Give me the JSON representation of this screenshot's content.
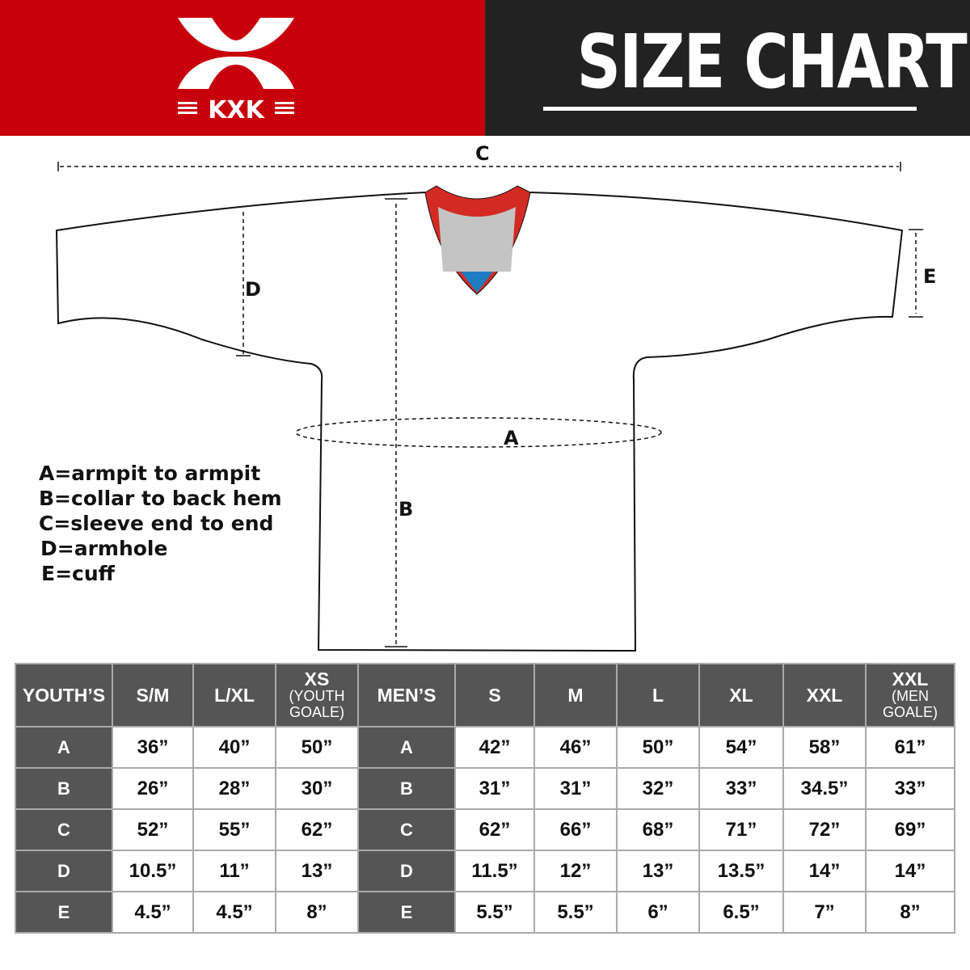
{
  "brand": {
    "logo_text": "KXK"
  },
  "header": {
    "title": "SIZE CHART"
  },
  "diagram": {
    "labels": [
      "A",
      "B",
      "C",
      "D",
      "E"
    ]
  },
  "legend": [
    "A=armpit to armpit",
    "B=collar to back hem",
    "C=sleeve end to end",
    "D=armhole",
    "E=cuff"
  ],
  "table": {
    "youth_header": "YOUTH’S",
    "men_header": "MEN’S",
    "youth_sizes": [
      {
        "main": "S/M"
      },
      {
        "main": "L/XL"
      },
      {
        "main": "XS",
        "sub": "(YOUTH GOALE)"
      }
    ],
    "men_sizes": [
      {
        "main": "S"
      },
      {
        "main": "M"
      },
      {
        "main": "L"
      },
      {
        "main": "XL"
      },
      {
        "main": "XXL"
      },
      {
        "main": "XXL",
        "sub": "(MEN GOALE)"
      }
    ],
    "rows": [
      {
        "label": "A",
        "youth": [
          "36”",
          "40”",
          "50”"
        ],
        "men": [
          "42”",
          "46”",
          "50”",
          "54”",
          "58”",
          "61”"
        ]
      },
      {
        "label": "B",
        "youth": [
          "26”",
          "28”",
          "30”"
        ],
        "men": [
          "31”",
          "31”",
          "32”",
          "33”",
          "34.5”",
          "33”"
        ]
      },
      {
        "label": "C",
        "youth": [
          "52”",
          "55”",
          "62”"
        ],
        "men": [
          "62”",
          "66”",
          "68”",
          "71”",
          "72”",
          "69”"
        ]
      },
      {
        "label": "D",
        "youth": [
          "10.5”",
          "11”",
          "13”"
        ],
        "men": [
          "11.5”",
          "12”",
          "13”",
          "13.5”",
          "14”",
          "14”"
        ]
      },
      {
        "label": "E",
        "youth": [
          "4.5”",
          "4.5”",
          "8”"
        ],
        "men": [
          "5.5”",
          "5.5”",
          "6”",
          "6.5”",
          "7”",
          "8”"
        ]
      }
    ]
  },
  "colors": {
    "brand_red": "#c8000b",
    "dark": "#222222",
    "table_header": "#555555"
  }
}
